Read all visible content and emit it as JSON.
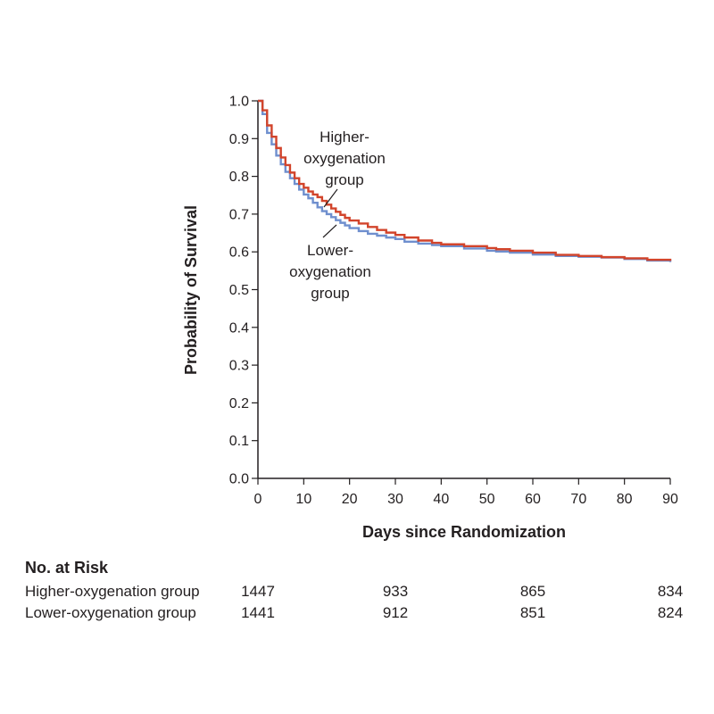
{
  "chart_data": {
    "type": "line",
    "xlabel": "Days since Randomization",
    "ylabel": "Probability of Survival",
    "xlim": [
      0,
      90
    ],
    "ylim": [
      0.0,
      1.0
    ],
    "x_ticks": [
      "0",
      "10",
      "20",
      "30",
      "40",
      "50",
      "60",
      "70",
      "80",
      "90"
    ],
    "y_ticks": [
      "0.0",
      "0.1",
      "0.2",
      "0.3",
      "0.4",
      "0.5",
      "0.6",
      "0.7",
      "0.8",
      "0.9",
      "1.0"
    ],
    "grid": false,
    "series": [
      {
        "name": "Higher-oxygenation group",
        "color": "#d2442b",
        "x": [
          0,
          1,
          2,
          3,
          4,
          5,
          6,
          7,
          8,
          9,
          10,
          11,
          12,
          13,
          14,
          15,
          16,
          17,
          18,
          19,
          20,
          22,
          24,
          26,
          28,
          30,
          32,
          35,
          38,
          40,
          45,
          50,
          52,
          55,
          60,
          65,
          70,
          75,
          80,
          85,
          90
        ],
        "y": [
          1.0,
          0.975,
          0.935,
          0.905,
          0.875,
          0.85,
          0.83,
          0.81,
          0.795,
          0.78,
          0.77,
          0.76,
          0.752,
          0.745,
          0.735,
          0.725,
          0.715,
          0.706,
          0.698,
          0.69,
          0.683,
          0.675,
          0.666,
          0.658,
          0.651,
          0.645,
          0.638,
          0.63,
          0.624,
          0.62,
          0.615,
          0.61,
          0.607,
          0.603,
          0.598,
          0.592,
          0.589,
          0.586,
          0.583,
          0.579,
          0.576
        ]
      },
      {
        "name": "Lower-oxygenation group",
        "color": "#6f8fce",
        "x": [
          0,
          1,
          2,
          3,
          4,
          5,
          6,
          7,
          8,
          9,
          10,
          11,
          12,
          13,
          14,
          15,
          16,
          17,
          18,
          19,
          20,
          22,
          24,
          26,
          28,
          30,
          32,
          35,
          38,
          40,
          45,
          50,
          52,
          55,
          60,
          65,
          70,
          75,
          80,
          85,
          90
        ],
        "y": [
          1.0,
          0.965,
          0.915,
          0.885,
          0.855,
          0.832,
          0.812,
          0.795,
          0.78,
          0.765,
          0.752,
          0.742,
          0.73,
          0.718,
          0.708,
          0.7,
          0.692,
          0.684,
          0.677,
          0.67,
          0.663,
          0.655,
          0.648,
          0.643,
          0.638,
          0.634,
          0.627,
          0.622,
          0.618,
          0.615,
          0.609,
          0.603,
          0.601,
          0.598,
          0.593,
          0.589,
          0.587,
          0.585,
          0.581,
          0.577,
          0.573
        ]
      }
    ],
    "annotations": {
      "higher": [
        "Higher-",
        "oxygenation",
        "group"
      ],
      "lower": [
        "Lower-",
        "oxygenation",
        "group"
      ]
    }
  },
  "risk_table": {
    "header": "No. at Risk",
    "rows": [
      {
        "label": "Higher-oxygenation group",
        "values": [
          "1447",
          "933",
          "865",
          "834"
        ]
      },
      {
        "label": "Lower-oxygenation group",
        "values": [
          "1441",
          "912",
          "851",
          "824"
        ]
      }
    ]
  }
}
